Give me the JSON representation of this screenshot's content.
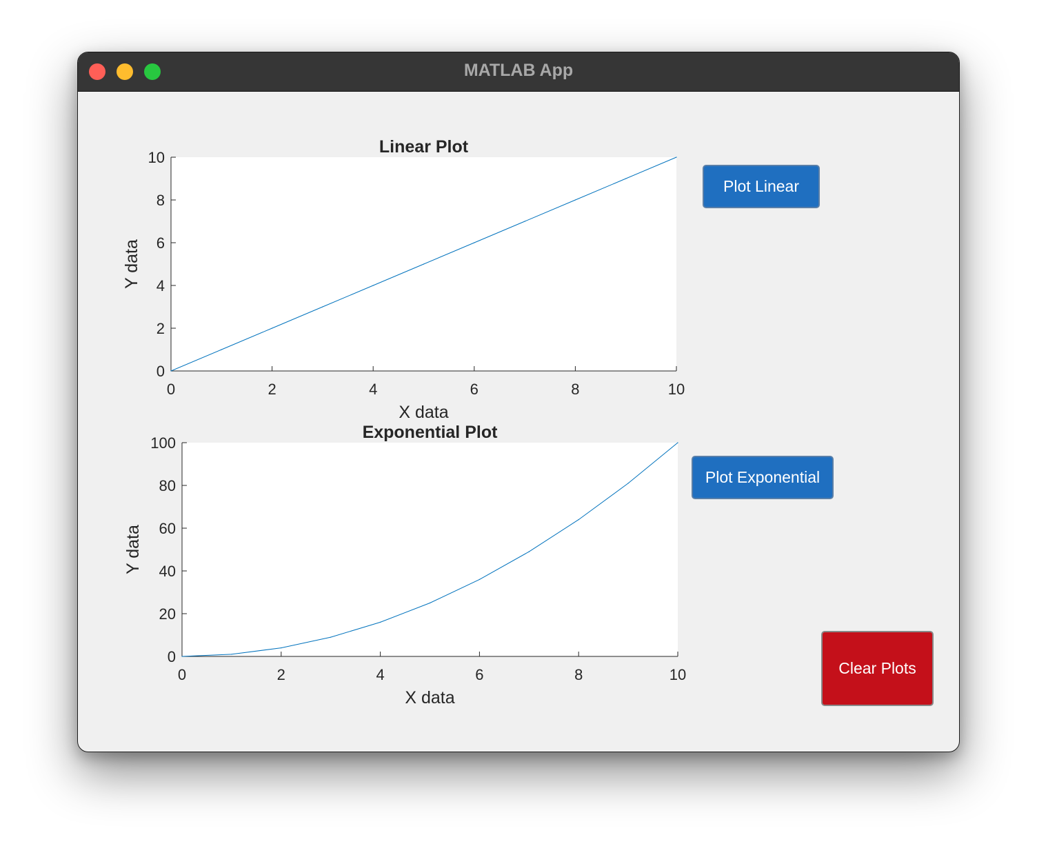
{
  "window": {
    "title": "MATLAB App"
  },
  "buttons": {
    "plot_linear": "Plot Linear",
    "plot_exponential": "Plot Exponential",
    "clear_plots": "Clear Plots"
  },
  "colors": {
    "line": "#0072bd",
    "blue_button": "#1f6fc0",
    "red_button": "#c4101a"
  },
  "chart_data": [
    {
      "type": "line",
      "title": "Linear Plot",
      "xlabel": "X data",
      "ylabel": "Y data",
      "xlim": [
        0,
        10
      ],
      "ylim": [
        0,
        10
      ],
      "xticks": [
        0,
        2,
        4,
        6,
        8,
        10
      ],
      "yticks": [
        0,
        2,
        4,
        6,
        8,
        10
      ],
      "grid": false,
      "series": [
        {
          "x": [
            0,
            1,
            2,
            3,
            4,
            5,
            6,
            7,
            8,
            9,
            10
          ],
          "y": [
            0,
            1,
            2,
            3,
            4,
            5,
            6,
            7,
            8,
            9,
            10
          ]
        }
      ]
    },
    {
      "type": "line",
      "title": "Exponential Plot",
      "xlabel": "X data",
      "ylabel": "Y data",
      "xlim": [
        0,
        10
      ],
      "ylim": [
        0,
        100
      ],
      "xticks": [
        0,
        2,
        4,
        6,
        8,
        10
      ],
      "yticks": [
        0,
        20,
        40,
        60,
        80,
        100
      ],
      "grid": false,
      "series": [
        {
          "x": [
            0,
            1,
            2,
            3,
            4,
            5,
            6,
            7,
            8,
            9,
            10
          ],
          "y": [
            0,
            1,
            4,
            9,
            16,
            25,
            36,
            49,
            64,
            81,
            100
          ]
        }
      ]
    }
  ]
}
